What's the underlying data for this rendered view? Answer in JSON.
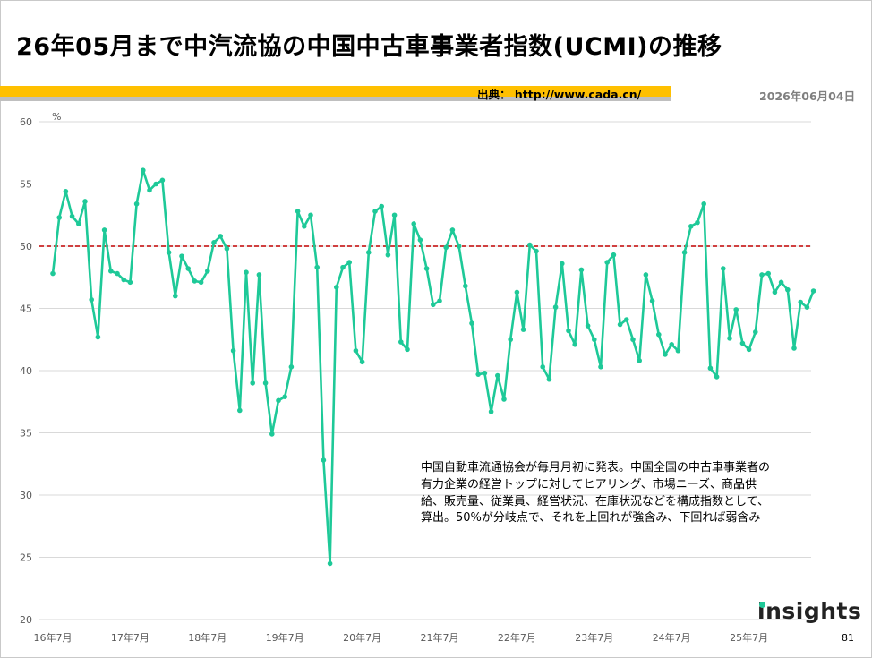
{
  "header": {
    "title": "26年05月まで中汽流協の中国中古車事業者指数(UCMI)の推移",
    "source": "出典： http://www.cada.cn/",
    "date": "2026年06月04日"
  },
  "note": "中国自動車流通協会が毎月月初に発表。中国全国の中古車事業者の有力企業の経営トップに対してヒアリング、市場ニーズ、商品供給、販売量、従業員、経営状況、在庫状況などを構成指数として、算出。50%が分岐点で、それを上回れが強含み、下回れば弱含み",
  "logo": "insights",
  "page_number": "81",
  "colors": {
    "line": "#1ec998",
    "reference": "#c00000",
    "grid": "#d9d9d9"
  },
  "chart_data": {
    "type": "line",
    "ylabel": "%",
    "ylim": [
      20,
      60
    ],
    "yticks": [
      20,
      25,
      30,
      35,
      40,
      45,
      50,
      55,
      60
    ],
    "xtick_labels": [
      "16年7月",
      "17年7月",
      "18年7月",
      "19年7月",
      "20年7月",
      "21年7月",
      "22年7月",
      "23年7月",
      "24年7月",
      "25年7月"
    ],
    "x_start": "2016-07",
    "reference_line": 50,
    "grid": true,
    "series": [
      {
        "values": [
          47.8,
          52.3,
          54.4,
          52.4,
          51.8,
          53.6,
          45.7,
          42.7,
          51.3,
          48.0,
          47.8,
          47.3,
          47.1,
          53.4,
          56.1,
          54.5,
          55.0,
          55.3,
          49.5,
          46.0,
          49.2,
          48.2,
          47.2,
          47.1,
          48.0,
          50.3,
          50.8,
          49.8,
          41.6,
          36.8,
          47.9,
          39.0,
          47.7,
          39.0,
          34.9,
          37.6,
          37.9,
          40.3,
          52.8,
          51.6,
          52.5,
          48.3,
          32.8,
          24.5,
          46.7,
          48.3,
          48.7,
          41.6,
          40.7,
          49.5,
          52.8,
          53.2,
          49.3,
          52.5,
          42.3,
          41.7,
          51.8,
          50.5,
          48.2,
          45.3,
          45.6,
          49.9,
          51.3,
          50.0,
          46.8,
          43.8,
          39.7,
          39.8,
          36.7,
          39.6,
          37.7,
          42.5,
          46.3,
          43.3,
          50.1,
          49.6,
          40.3,
          39.3,
          45.1,
          48.6,
          43.2,
          42.1,
          48.1,
          43.6,
          42.5,
          40.3,
          48.7,
          49.3,
          43.7,
          44.1,
          42.5,
          40.8,
          47.7,
          45.6,
          42.9,
          41.3,
          42.1,
          41.6,
          49.5,
          51.6,
          51.9,
          53.4,
          40.2,
          39.5,
          48.2,
          42.6,
          44.9,
          42.2,
          41.7,
          43.1,
          47.7,
          47.8,
          46.3,
          47.1,
          46.5,
          41.8,
          45.5,
          45.1,
          46.4
        ]
      }
    ]
  }
}
